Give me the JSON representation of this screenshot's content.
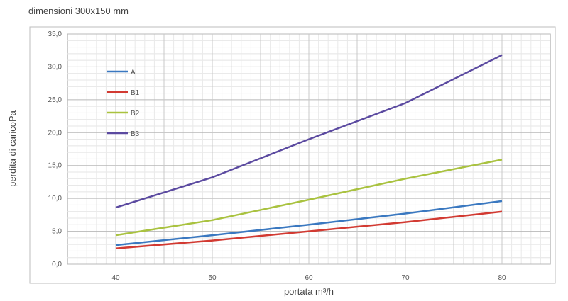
{
  "chart_data": {
    "type": "line",
    "title": "dimensioni  300x150 mm",
    "xlabel": "portata m³/h",
    "ylabel": "perdita di caricoPa",
    "x": [
      40,
      50,
      60,
      70,
      80
    ],
    "x_tick_labels": [
      "40",
      "50",
      "60",
      "70",
      "80"
    ],
    "y_tick_labels": [
      "0,0",
      "5,0",
      "10,0",
      "15,0",
      "20,0",
      "25,0",
      "30,0",
      "35,0"
    ],
    "xlim": [
      35,
      85
    ],
    "ylim": [
      0,
      35
    ],
    "grid": true,
    "legend_position": "top-left",
    "series": [
      {
        "name": "A",
        "color": "#3a78c0",
        "values": [
          2.9,
          4.4,
          6.0,
          7.7,
          9.6
        ]
      },
      {
        "name": "B1",
        "color": "#d23a32",
        "values": [
          2.4,
          3.6,
          5.0,
          6.4,
          8.0
        ]
      },
      {
        "name": "B2",
        "color": "#a9c23f",
        "values": [
          4.4,
          6.7,
          9.8,
          13.0,
          15.9
        ]
      },
      {
        "name": "B3",
        "color": "#5b4aa0",
        "values": [
          8.6,
          13.2,
          19.0,
          24.5,
          31.8
        ]
      }
    ]
  }
}
